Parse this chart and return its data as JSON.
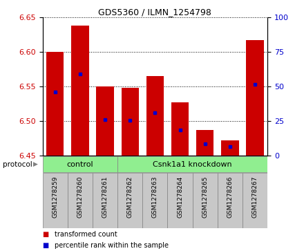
{
  "title": "GDS5360 / ILMN_1254798",
  "samples": [
    "GSM1278259",
    "GSM1278260",
    "GSM1278261",
    "GSM1278262",
    "GSM1278263",
    "GSM1278264",
    "GSM1278265",
    "GSM1278266",
    "GSM1278267"
  ],
  "red_top": [
    6.6,
    6.638,
    6.55,
    6.548,
    6.565,
    6.527,
    6.487,
    6.472,
    6.617
  ],
  "red_bottom": [
    6.45,
    6.45,
    6.45,
    6.45,
    6.45,
    6.45,
    6.45,
    6.45,
    6.45
  ],
  "blue_values": [
    6.542,
    6.568,
    6.502,
    6.501,
    6.512,
    6.487,
    6.467,
    6.463,
    6.553
  ],
  "ylim_left": [
    6.45,
    6.65
  ],
  "ylim_right": [
    0,
    100
  ],
  "yticks_left": [
    6.45,
    6.5,
    6.55,
    6.6,
    6.65
  ],
  "yticks_right": [
    0,
    25,
    50,
    75,
    100
  ],
  "control_indices": [
    0,
    1,
    2
  ],
  "knockdown_indices": [
    3,
    4,
    5,
    6,
    7,
    8
  ],
  "control_label": "control",
  "knockdown_label": "Csnk1a1 knockdown",
  "group_color": "#90EE90",
  "bar_color": "#CC0000",
  "blue_color": "#0000CC",
  "tick_bg_color": "#C8C8C8",
  "plot_bg": "#FFFFFF",
  "bar_width": 0.7,
  "legend1": "transformed count",
  "legend2": "percentile rank within the sample",
  "protocol_label": "protocol"
}
